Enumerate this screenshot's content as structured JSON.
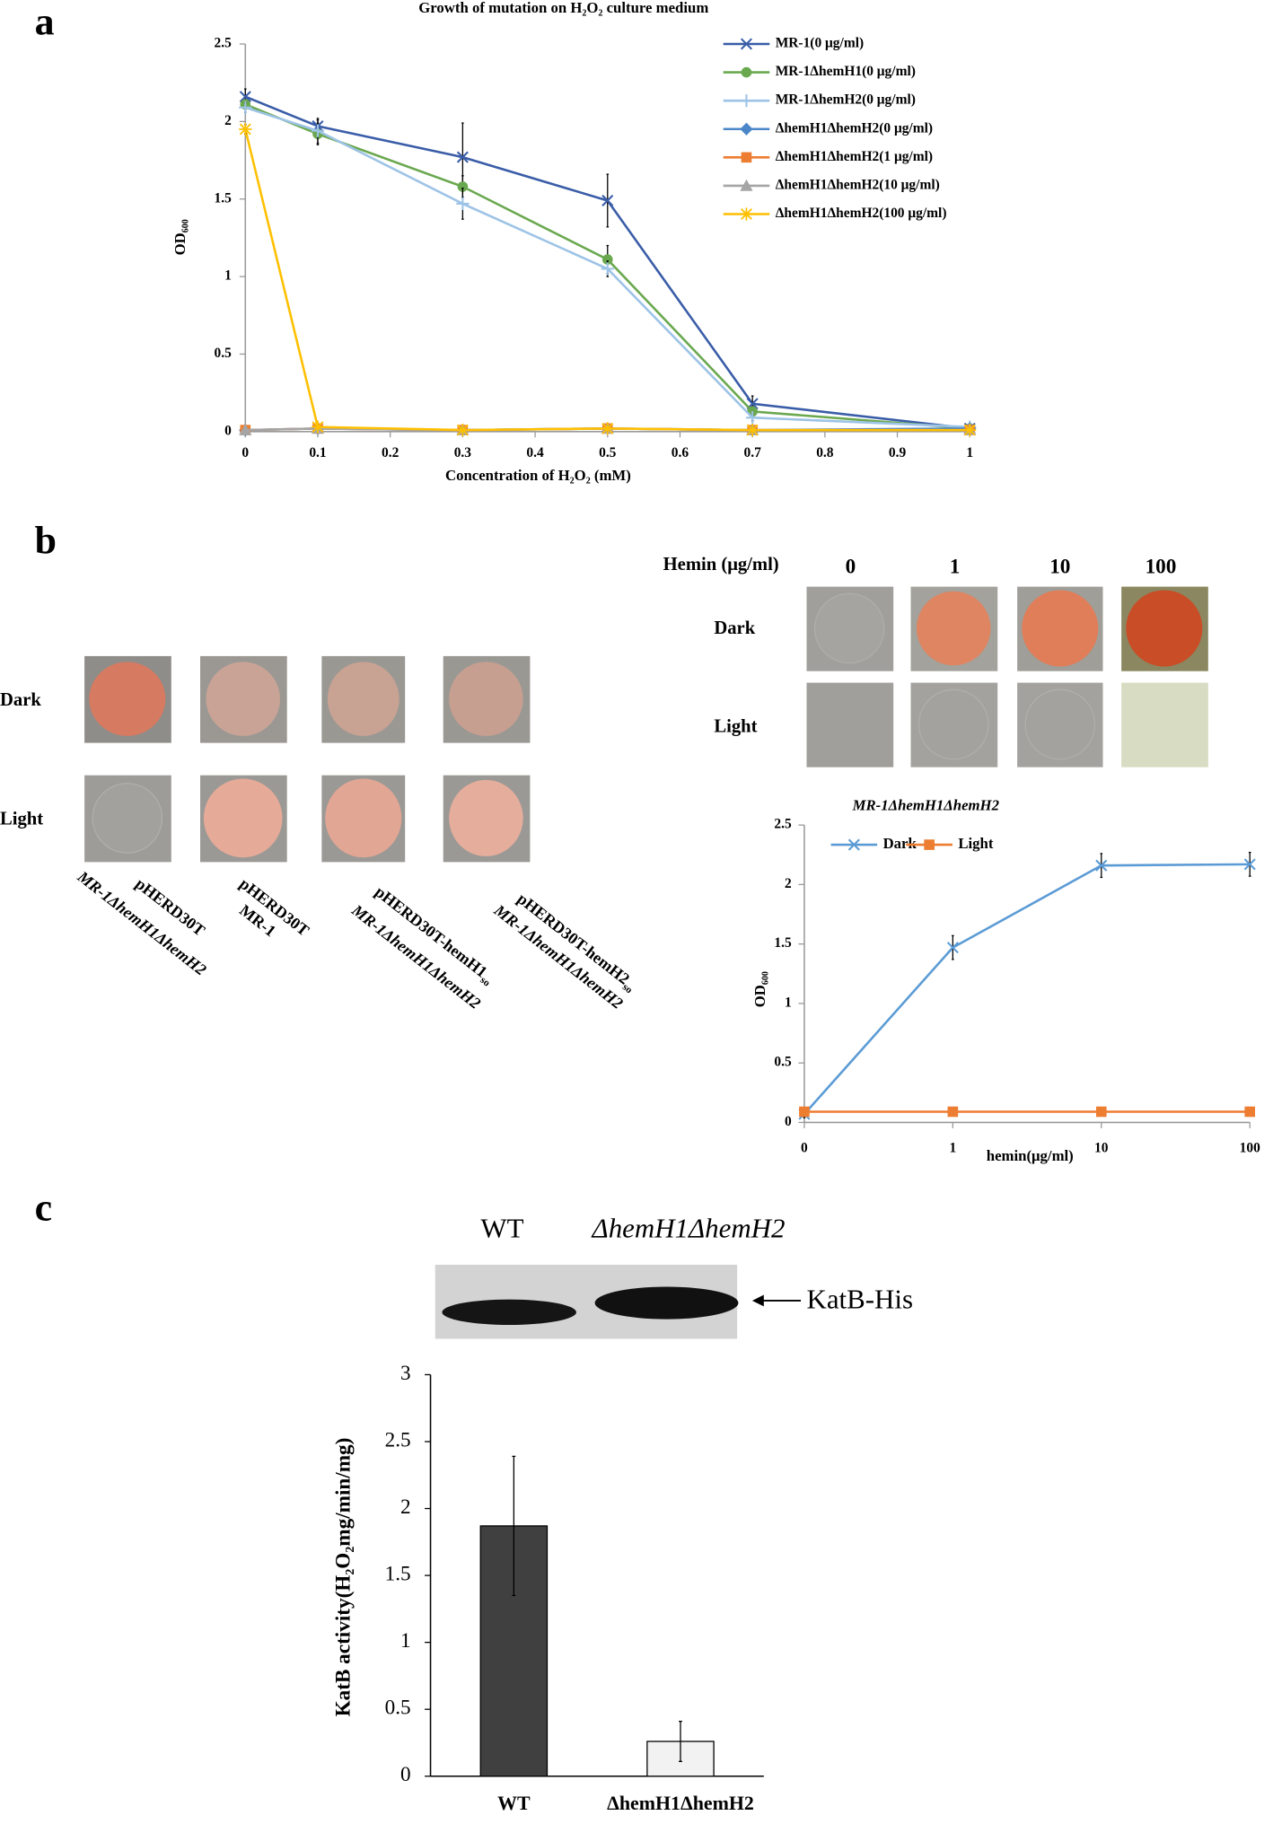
{
  "panel_labels": [
    "a",
    "b",
    "c"
  ],
  "chart_data": [
    {
      "type": "line",
      "title": "Growth of mutation on H₂O₂ culture medium",
      "xlabel": "Concentration of H₂O₂ (mM)",
      "ylabel": "OD₆₀₀",
      "x": [
        0,
        0.1,
        0.3,
        0.5,
        0.7,
        1
      ],
      "xlim": [
        0,
        1
      ],
      "xticks": [
        0,
        0.1,
        0.2,
        0.3,
        0.4,
        0.5,
        0.6,
        0.7,
        0.8,
        0.9,
        1
      ],
      "ylim": [
        0,
        2.5
      ],
      "yticks": [
        0,
        0.5,
        1,
        1.5,
        2,
        2.5
      ],
      "legend": "right",
      "series": [
        {
          "name": "MR-1(0 μg/ml)",
          "color": "#3a5da8",
          "marker": "x",
          "values": [
            2.16,
            1.97,
            1.77,
            1.49,
            0.18,
            0.02
          ],
          "errors": [
            0.05,
            0.04,
            0.22,
            0.17,
            0.05,
            0.02
          ]
        },
        {
          "name": "MR-1ΔhemH1(0 μg/ml)",
          "color": "#6aa84f",
          "marker": "circle",
          "values": [
            2.11,
            1.92,
            1.58,
            1.11,
            0.13,
            0.02
          ],
          "errors": [
            0.03,
            0.07,
            0.07,
            0.09,
            0.03,
            0.01
          ]
        },
        {
          "name": "MR-1ΔhemH2(0 μg/ml)",
          "color": "#9dc3e6",
          "marker": "plus",
          "values": [
            2.09,
            1.94,
            1.47,
            1.05,
            0.09,
            0.03
          ],
          "errors": [
            0.03,
            0.08,
            0.1,
            0.05,
            0.02,
            0.01
          ]
        },
        {
          "name": "ΔhemH1ΔhemH2(0 μg/ml)",
          "color": "#4a86c8",
          "marker": "diamond",
          "values": [
            0.01,
            0.02,
            0.01,
            0.02,
            0.01,
            0.02
          ],
          "errors": [
            0.01,
            0.01,
            0.01,
            0.01,
            0.01,
            0.01
          ]
        },
        {
          "name": "ΔhemH1ΔhemH2(1 μg/ml)",
          "color": "#ed7d31",
          "marker": "square",
          "values": [
            0.01,
            0.02,
            0.01,
            0.02,
            0.01,
            0.01
          ],
          "errors": [
            0.01,
            0.01,
            0.01,
            0.01,
            0.01,
            0.01
          ]
        },
        {
          "name": "ΔhemH1ΔhemH2(10 μg/ml)",
          "color": "#a5a5a5",
          "marker": "triangle",
          "values": [
            0.01,
            0.02,
            0.01,
            0.02,
            0.01,
            0.01
          ],
          "errors": [
            0.01,
            0.01,
            0.01,
            0.01,
            0.01,
            0.01
          ]
        },
        {
          "name": "ΔhemH1ΔhemH2(100 μg/ml)",
          "color": "#ffc000",
          "marker": "star",
          "values": [
            1.95,
            0.03,
            0.01,
            0.02,
            0.01,
            0.01
          ],
          "errors": [
            0.03,
            0.01,
            0.01,
            0.01,
            0.01,
            0.01
          ]
        }
      ]
    },
    {
      "type": "line",
      "title": "MR-1ΔhemH1ΔhemH2",
      "xlabel": "hemin(μg/ml)",
      "ylabel": "OD₆₀₀",
      "categories": [
        "0",
        "1",
        "10",
        "100"
      ],
      "ylim": [
        0,
        2.5
      ],
      "yticks": [
        0,
        0.5,
        1,
        1.5,
        2,
        2.5
      ],
      "legend": "top-left",
      "series": [
        {
          "name": "Dark",
          "color": "#5b9bd5",
          "marker": "x",
          "values": [
            0.07,
            1.47,
            2.16,
            2.17
          ],
          "errors": [
            0.03,
            0.1,
            0.1,
            0.1
          ]
        },
        {
          "name": "Light",
          "color": "#ed7d31",
          "marker": "square",
          "values": [
            0.09,
            0.09,
            0.09,
            0.09
          ],
          "errors": [
            0.01,
            0.01,
            0.01,
            0.01
          ]
        }
      ]
    },
    {
      "type": "bar",
      "ylabel": "KatB activity(H₂O₂mg/min/mg)",
      "categories": [
        "WT",
        "ΔhemH1ΔhemH2"
      ],
      "values": [
        1.87,
        0.26
      ],
      "errors": [
        0.52,
        0.15
      ],
      "colors": [
        "#404040",
        "#f2f2f2"
      ],
      "ylim": [
        0,
        3
      ],
      "yticks": [
        0,
        0.5,
        1,
        1.5,
        2,
        2.5,
        3
      ]
    }
  ],
  "plates": {
    "row_labels": [
      "Dark",
      "Light"
    ],
    "strain_labels": [
      {
        "top": {
          "text": "pHERD30T"
        },
        "bottom": {
          "text": "MR-1ΔhemH1ΔhemH2"
        }
      },
      {
        "top": {
          "text": "pHERD30T"
        },
        "bottom": {
          "text": "MR-1"
        }
      },
      {
        "top": {
          "text": "pHERD30T-hemH1",
          "sub": "so"
        },
        "bottom": {
          "text": "MR-1ΔhemH1ΔhemH2"
        }
      },
      {
        "top": {
          "text": "pHERD30T-hemH2",
          "sub": "so"
        },
        "bottom": {
          "text": "MR-1ΔhemH1ΔhemH2"
        }
      }
    ]
  },
  "hemin_plates": {
    "header": "Hemin (μg/ml)",
    "columns": [
      "0",
      "1",
      "10",
      "100"
    ],
    "row_labels": [
      "Dark",
      "Light"
    ]
  },
  "blot": {
    "lanes": [
      "WT",
      "ΔhemH1ΔhemH2"
    ],
    "band_label": "KatB-His"
  }
}
